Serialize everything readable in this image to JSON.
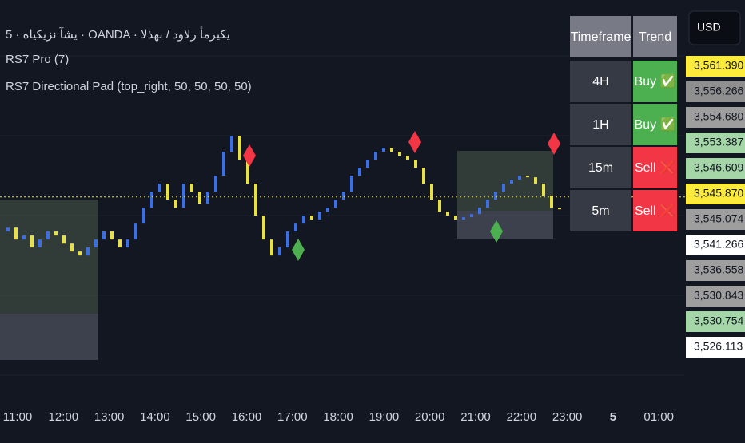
{
  "header": {
    "symbol_line": "يشآ نزيكياه · 5 · OANDA · يكيرمأ رلاود / بهذلا",
    "indicator_1": "RS7 Pro (7)",
    "indicator_2": "RS7 Directional Pad (top_right, 50, 50, 50, 50)"
  },
  "currency": "USD",
  "table": {
    "columns": [
      "Timeframe",
      "Trend"
    ],
    "rows": [
      [
        "4H",
        "Buy ✅"
      ],
      [
        "1H",
        "Buy ✅"
      ],
      [
        "15m",
        "Sell ❌"
      ],
      [
        "5m",
        "Sell ❌"
      ]
    ]
  },
  "price_tags": [
    {
      "label": "3,561.390",
      "color": "#fdeb3b"
    },
    {
      "label": "3,556.266",
      "color": "#8f8f8f"
    },
    {
      "label": "3,554.680",
      "color": "#9e9e9e"
    },
    {
      "label": "3,553.387",
      "color": "#a5d6a7"
    },
    {
      "label": "3,546.609",
      "color": "#a5d6a7"
    },
    {
      "label": "3,545.870",
      "color": "#fdeb3b"
    },
    {
      "label": "3,545.074",
      "color": "#9e9e9e"
    },
    {
      "label": "3,541.266",
      "color": "#ffffff"
    },
    {
      "label": "3,536.558",
      "color": "#9e9e9e"
    },
    {
      "label": "3,530.843",
      "color": "#9e9e9e"
    },
    {
      "label": "3,530.754",
      "color": "#a5d6a7"
    },
    {
      "label": "3,526.113",
      "color": "#ffffff"
    }
  ],
  "time_axis": [
    "11:00",
    "12:00",
    "13:00",
    "14:00",
    "15:00",
    "16:00",
    "17:00",
    "18:00",
    "19:00",
    "20:00",
    "21:00",
    "22:00",
    "23:00",
    "5",
    "01:00"
  ],
  "chart_data": {
    "type": "price-bars",
    "up_color": "#3d6fe0",
    "down_color": "#e8e04a",
    "ylim": [
      3528,
      3564
    ],
    "current_price": 3545.87,
    "values": [
      3542.69,
      3543.05,
      3541.95,
      3542.32,
      3541.22,
      3541.95,
      3542.69,
      3542.32,
      3541.58,
      3540.85,
      3540.48,
      3541.22,
      3541.95,
      3542.69,
      3541.95,
      3541.22,
      3541.95,
      3543.42,
      3544.89,
      3546.36,
      3547.1,
      3545.63,
      3544.89,
      3547.1,
      3546.36,
      3545.26,
      3546.36,
      3547.83,
      3550.04,
      3551.51,
      3549.3,
      3547.1,
      3544.16,
      3541.95,
      3540.48,
      3541.22,
      3542.69,
      3543.42,
      3544.16,
      3543.79,
      3544.52,
      3544.89,
      3545.63,
      3546.36,
      3547.83,
      3548.57,
      3549.3,
      3550.04,
      3550.4,
      3550.04,
      3549.67,
      3549.3,
      3548.57,
      3547.1,
      3545.63,
      3544.52,
      3544.16,
      3543.79,
      3544.01,
      3544.3,
      3544.89,
      3545.63,
      3546.36,
      3547.1,
      3547.46,
      3547.83,
      3547.68,
      3547.1,
      3545.99,
      3544.89,
      3544.74
    ]
  }
}
